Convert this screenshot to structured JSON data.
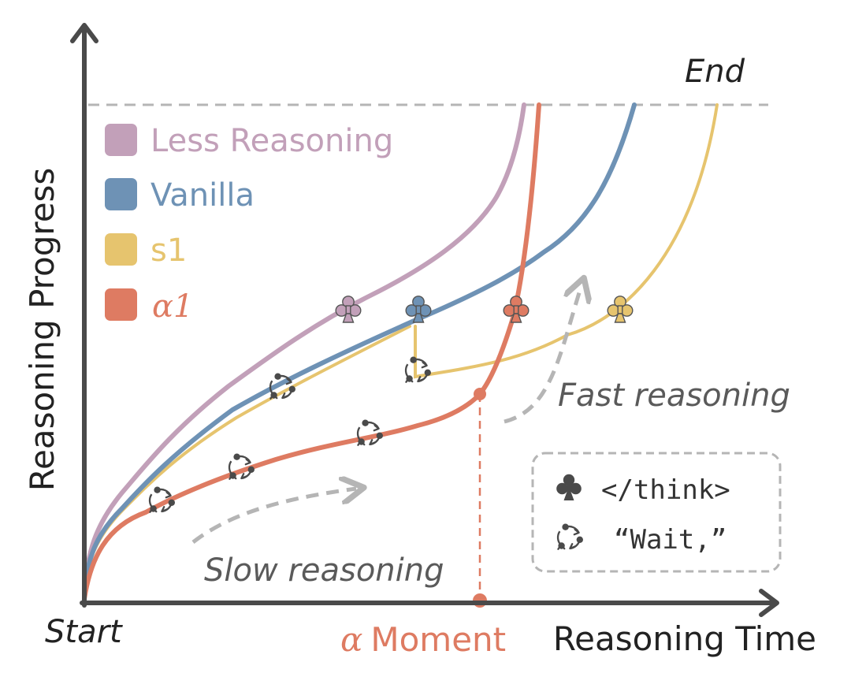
{
  "axes": {
    "y_label": "Reasoning Progress",
    "x_label": "Reasoning Time",
    "start_label": "Start",
    "end_label": "End",
    "moment_symbol": "α",
    "moment_label": "Moment"
  },
  "legend": [
    {
      "name": "Less Reasoning",
      "color": "#c2a0b9"
    },
    {
      "name": "Vanilla",
      "color": "#6e92b5"
    },
    {
      "name": "s1",
      "color": "#e6c46e"
    },
    {
      "name": "α1",
      "color": "#de7b62"
    }
  ],
  "annotations": {
    "fast": "Fast reasoning",
    "slow": "Slow reasoning"
  },
  "key": {
    "think_token": "</think>",
    "think_icon": "club-icon",
    "wait_token": "“Wait,”",
    "wait_icon": "cycle-arrows-icon"
  },
  "colors": {
    "axis": "#4a4a4a",
    "guide": "#b5b5b5",
    "text": "#222222",
    "annotation": "#5a5a5a",
    "icon": "#4a4a4a",
    "marker_stroke": "#555555"
  }
}
